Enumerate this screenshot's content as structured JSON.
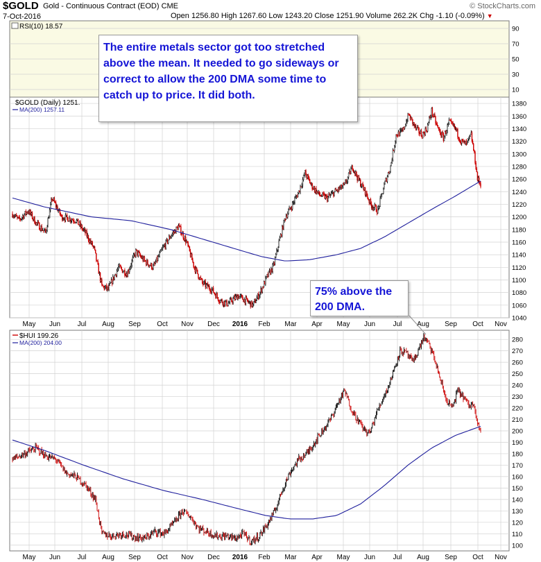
{
  "header": {
    "symbol": "$GOLD",
    "description": "Gold - Continuous Contract (EOD)",
    "exchange": "CME",
    "date": "7-Oct-2016",
    "open_label": "Open",
    "open": "1256.80",
    "high_label": "High",
    "high": "1267.60",
    "low_label": "Low",
    "low": "1243.20",
    "close_label": "Close",
    "close": "1251.90",
    "volume_label": "Volume",
    "volume": "262.2K",
    "change_label": "Chg",
    "change": "-1.10 (-0.09%)",
    "copyright": "© StockCharts.com"
  },
  "annotations": {
    "main": "The entire metals sector got too stretched above the mean. It needed to go sideways or correct to allow the 200 DMA some time to catch up to price. It did both.",
    "hui": "75% above the 200 DMA."
  },
  "colors": {
    "up": "#000000",
    "down": "#cc0000",
    "ma": "#1e1e9c",
    "rsi_bg": "#fafae4",
    "grid": "#d2d2d2",
    "note_text": "#1515d6"
  },
  "chart_data": [
    {
      "type": "line",
      "panel": "rsi",
      "legend": "RSI(10) 18.57",
      "yticks": [
        10,
        30,
        50,
        70,
        90
      ],
      "ylim": [
        0,
        100
      ],
      "grid": true
    },
    {
      "type": "candlestick",
      "panel": "gold",
      "legend_price": "$GOLD (Daily) 1251.",
      "legend_ma": "MA(200) 1257.11",
      "x": [
        "2015-04-20",
        "2016-10-31"
      ],
      "x_months": [
        "May",
        "Jun",
        "Jul",
        "Aug",
        "Sep",
        "Oct",
        "Nov",
        "Dec",
        "2016",
        "Feb",
        "Mar",
        "Apr",
        "May",
        "Jun",
        "Jul",
        "Aug",
        "Sep",
        "Oct",
        "Nov"
      ],
      "ylim": [
        1040,
        1390
      ],
      "yticks": [
        1040,
        1060,
        1080,
        1100,
        1120,
        1140,
        1160,
        1180,
        1200,
        1220,
        1240,
        1260,
        1280,
        1300,
        1320,
        1340,
        1360,
        1380
      ],
      "price": [
        [
          0,
          1205
        ],
        [
          8,
          1195
        ],
        [
          20,
          1210
        ],
        [
          30,
          1190
        ],
        [
          42,
          1175
        ],
        [
          50,
          1230
        ],
        [
          62,
          1200
        ],
        [
          80,
          1195
        ],
        [
          92,
          1175
        ],
        [
          103,
          1150
        ],
        [
          113,
          1090
        ],
        [
          121,
          1085
        ],
        [
          134,
          1120
        ],
        [
          145,
          1110
        ],
        [
          156,
          1145
        ],
        [
          167,
          1130
        ],
        [
          178,
          1120
        ],
        [
          190,
          1150
        ],
        [
          200,
          1170
        ],
        [
          210,
          1185
        ],
        [
          220,
          1160
        ],
        [
          230,
          1120
        ],
        [
          240,
          1095
        ],
        [
          252,
          1085
        ],
        [
          262,
          1068
        ],
        [
          272,
          1062
        ],
        [
          285,
          1075
        ],
        [
          294,
          1068
        ],
        [
          304,
          1060
        ],
        [
          313,
          1080
        ],
        [
          322,
          1105
        ],
        [
          330,
          1122
        ],
        [
          337,
          1160
        ],
        [
          345,
          1200
        ],
        [
          352,
          1215
        ],
        [
          362,
          1240
        ],
        [
          370,
          1270
        ],
        [
          378,
          1250
        ],
        [
          388,
          1235
        ],
        [
          398,
          1230
        ],
        [
          408,
          1240
        ],
        [
          420,
          1250
        ],
        [
          430,
          1280
        ],
        [
          437,
          1260
        ],
        [
          446,
          1240
        ],
        [
          453,
          1220
        ],
        [
          462,
          1210
        ],
        [
          470,
          1250
        ],
        [
          478,
          1280
        ],
        [
          485,
          1330
        ],
        [
          493,
          1335
        ],
        [
          501,
          1362
        ],
        [
          510,
          1340
        ],
        [
          518,
          1330
        ],
        [
          524,
          1340
        ],
        [
          530,
          1368
        ],
        [
          538,
          1340
        ],
        [
          545,
          1325
        ],
        [
          552,
          1350
        ],
        [
          560,
          1340
        ],
        [
          567,
          1320
        ],
        [
          574,
          1315
        ],
        [
          580,
          1330
        ],
        [
          585,
          1290
        ],
        [
          588,
          1260
        ],
        [
          592,
          1252
        ]
      ],
      "ma200": [
        [
          0,
          1230
        ],
        [
          40,
          1216
        ],
        [
          100,
          1200
        ],
        [
          150,
          1194
        ],
        [
          200,
          1180
        ],
        [
          240,
          1165
        ],
        [
          280,
          1150
        ],
        [
          315,
          1137
        ],
        [
          345,
          1130
        ],
        [
          375,
          1132
        ],
        [
          410,
          1140
        ],
        [
          440,
          1150
        ],
        [
          470,
          1168
        ],
        [
          500,
          1190
        ],
        [
          530,
          1212
        ],
        [
          560,
          1233
        ],
        [
          592,
          1257
        ]
      ]
    },
    {
      "type": "ohlc",
      "panel": "hui",
      "legend_price": "$HUI 199.26",
      "legend_ma": "MA(200) 204.00",
      "x": [
        "2015-04-20",
        "2016-10-31"
      ],
      "x_months": [
        "May",
        "Jun",
        "Jul",
        "Aug",
        "Sep",
        "Oct",
        "Nov",
        "Dec",
        "2016",
        "Feb",
        "Mar",
        "Apr",
        "May",
        "Jun",
        "Jul",
        "Aug",
        "Sep",
        "Oct",
        "Nov"
      ],
      "ylim": [
        95,
        288
      ],
      "yticks": [
        100,
        110,
        120,
        130,
        140,
        150,
        160,
        170,
        180,
        190,
        200,
        210,
        220,
        230,
        240,
        250,
        260,
        270,
        280
      ],
      "price": [
        [
          0,
          175
        ],
        [
          15,
          180
        ],
        [
          30,
          185
        ],
        [
          42,
          178
        ],
        [
          55,
          175
        ],
        [
          68,
          163
        ],
        [
          80,
          160
        ],
        [
          93,
          152
        ],
        [
          105,
          140
        ],
        [
          113,
          110
        ],
        [
          125,
          108
        ],
        [
          140,
          110
        ],
        [
          155,
          107
        ],
        [
          168,
          106
        ],
        [
          180,
          112
        ],
        [
          192,
          110
        ],
        [
          205,
          120
        ],
        [
          215,
          130
        ],
        [
          225,
          125
        ],
        [
          235,
          115
        ],
        [
          245,
          112
        ],
        [
          258,
          108
        ],
        [
          270,
          108
        ],
        [
          282,
          106
        ],
        [
          292,
          110
        ],
        [
          302,
          103
        ],
        [
          312,
          108
        ],
        [
          322,
          118
        ],
        [
          332,
          130
        ],
        [
          342,
          150
        ],
        [
          352,
          165
        ],
        [
          362,
          175
        ],
        [
          372,
          180
        ],
        [
          382,
          190
        ],
        [
          392,
          200
        ],
        [
          402,
          210
        ],
        [
          412,
          225
        ],
        [
          420,
          235
        ],
        [
          428,
          220
        ],
        [
          436,
          210
        ],
        [
          446,
          200
        ],
        [
          452,
          198
        ],
        [
          460,
          215
        ],
        [
          468,
          228
        ],
        [
          476,
          240
        ],
        [
          483,
          255
        ],
        [
          490,
          270
        ],
        [
          498,
          268
        ],
        [
          506,
          260
        ],
        [
          513,
          270
        ],
        [
          520,
          282
        ],
        [
          527,
          275
        ],
        [
          534,
          262
        ],
        [
          541,
          245
        ],
        [
          548,
          228
        ],
        [
          556,
          220
        ],
        [
          563,
          235
        ],
        [
          570,
          230
        ],
        [
          577,
          222
        ],
        [
          584,
          224
        ],
        [
          587,
          210
        ],
        [
          592,
          199
        ]
      ],
      "ma200": [
        [
          0,
          192
        ],
        [
          40,
          183
        ],
        [
          90,
          170
        ],
        [
          140,
          158
        ],
        [
          190,
          148
        ],
        [
          240,
          140
        ],
        [
          285,
          132
        ],
        [
          320,
          126
        ],
        [
          350,
          123
        ],
        [
          380,
          123
        ],
        [
          410,
          126
        ],
        [
          440,
          136
        ],
        [
          470,
          152
        ],
        [
          500,
          170
        ],
        [
          530,
          185
        ],
        [
          560,
          196
        ],
        [
          592,
          204
        ]
      ]
    }
  ]
}
